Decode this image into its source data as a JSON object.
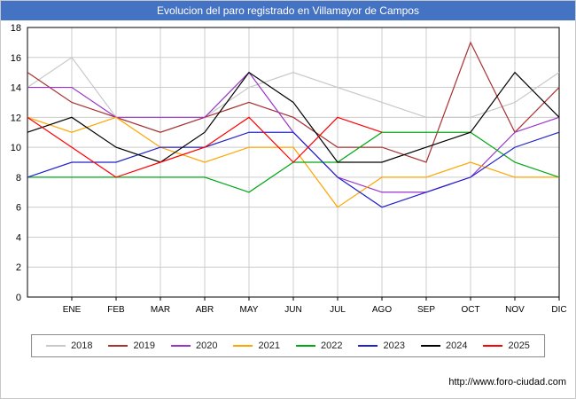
{
  "header": {
    "title": "Evolucion del paro registrado en Villamayor de Campos"
  },
  "footer": {
    "url": "http://www.foro-ciudad.com"
  },
  "chart_data": {
    "type": "line",
    "title": "Evolucion del paro registrado en Villamayor de Campos",
    "xlabel": "",
    "ylabel": "",
    "categories": [
      "ENE",
      "FEB",
      "MAR",
      "ABR",
      "MAY",
      "JUN",
      "JUL",
      "AGO",
      "SEP",
      "OCT",
      "NOV",
      "DIC"
    ],
    "ylim": [
      0,
      18
    ],
    "yticks": [
      0,
      2,
      4,
      6,
      8,
      10,
      12,
      14,
      16,
      18
    ],
    "grid": true,
    "legend_position": "bottom",
    "note": "edge = value drawn at the left axis before the ENE point; 2025 has data only through AGO",
    "series": [
      {
        "name": "2018",
        "color": "#c8c8c8",
        "edge": 14,
        "values": [
          16,
          12,
          11,
          12,
          14,
          15,
          14,
          13,
          12,
          12,
          13,
          15
        ]
      },
      {
        "name": "2019",
        "color": "#a83232",
        "edge": 15,
        "values": [
          13,
          12,
          11,
          12,
          13,
          12,
          10,
          10,
          9,
          17,
          11,
          14
        ]
      },
      {
        "name": "2020",
        "color": "#9932cc",
        "edge": 14,
        "values": [
          14,
          12,
          12,
          12,
          15,
          11,
          8,
          7,
          7,
          8,
          11,
          12
        ]
      },
      {
        "name": "2021",
        "color": "#ffa500",
        "edge": 12,
        "values": [
          11,
          12,
          10,
          9,
          10,
          10,
          6,
          8,
          8,
          9,
          8,
          8
        ]
      },
      {
        "name": "2022",
        "color": "#00a814",
        "edge": 8,
        "values": [
          8,
          8,
          8,
          8,
          7,
          9,
          9,
          11,
          11,
          11,
          9,
          8
        ]
      },
      {
        "name": "2023",
        "color": "#2222cc",
        "edge": 8,
        "values": [
          9,
          9,
          10,
          10,
          11,
          11,
          8,
          6,
          7,
          8,
          10,
          11
        ]
      },
      {
        "name": "2024",
        "color": "#000000",
        "edge": 11,
        "values": [
          12,
          10,
          9,
          11,
          15,
          13,
          9,
          9,
          10,
          11,
          15,
          12
        ]
      },
      {
        "name": "2025",
        "color": "#ff0000",
        "edge": 12,
        "values": [
          10,
          8,
          9,
          10,
          12,
          9,
          12,
          11,
          null,
          null,
          null,
          null
        ]
      }
    ]
  }
}
